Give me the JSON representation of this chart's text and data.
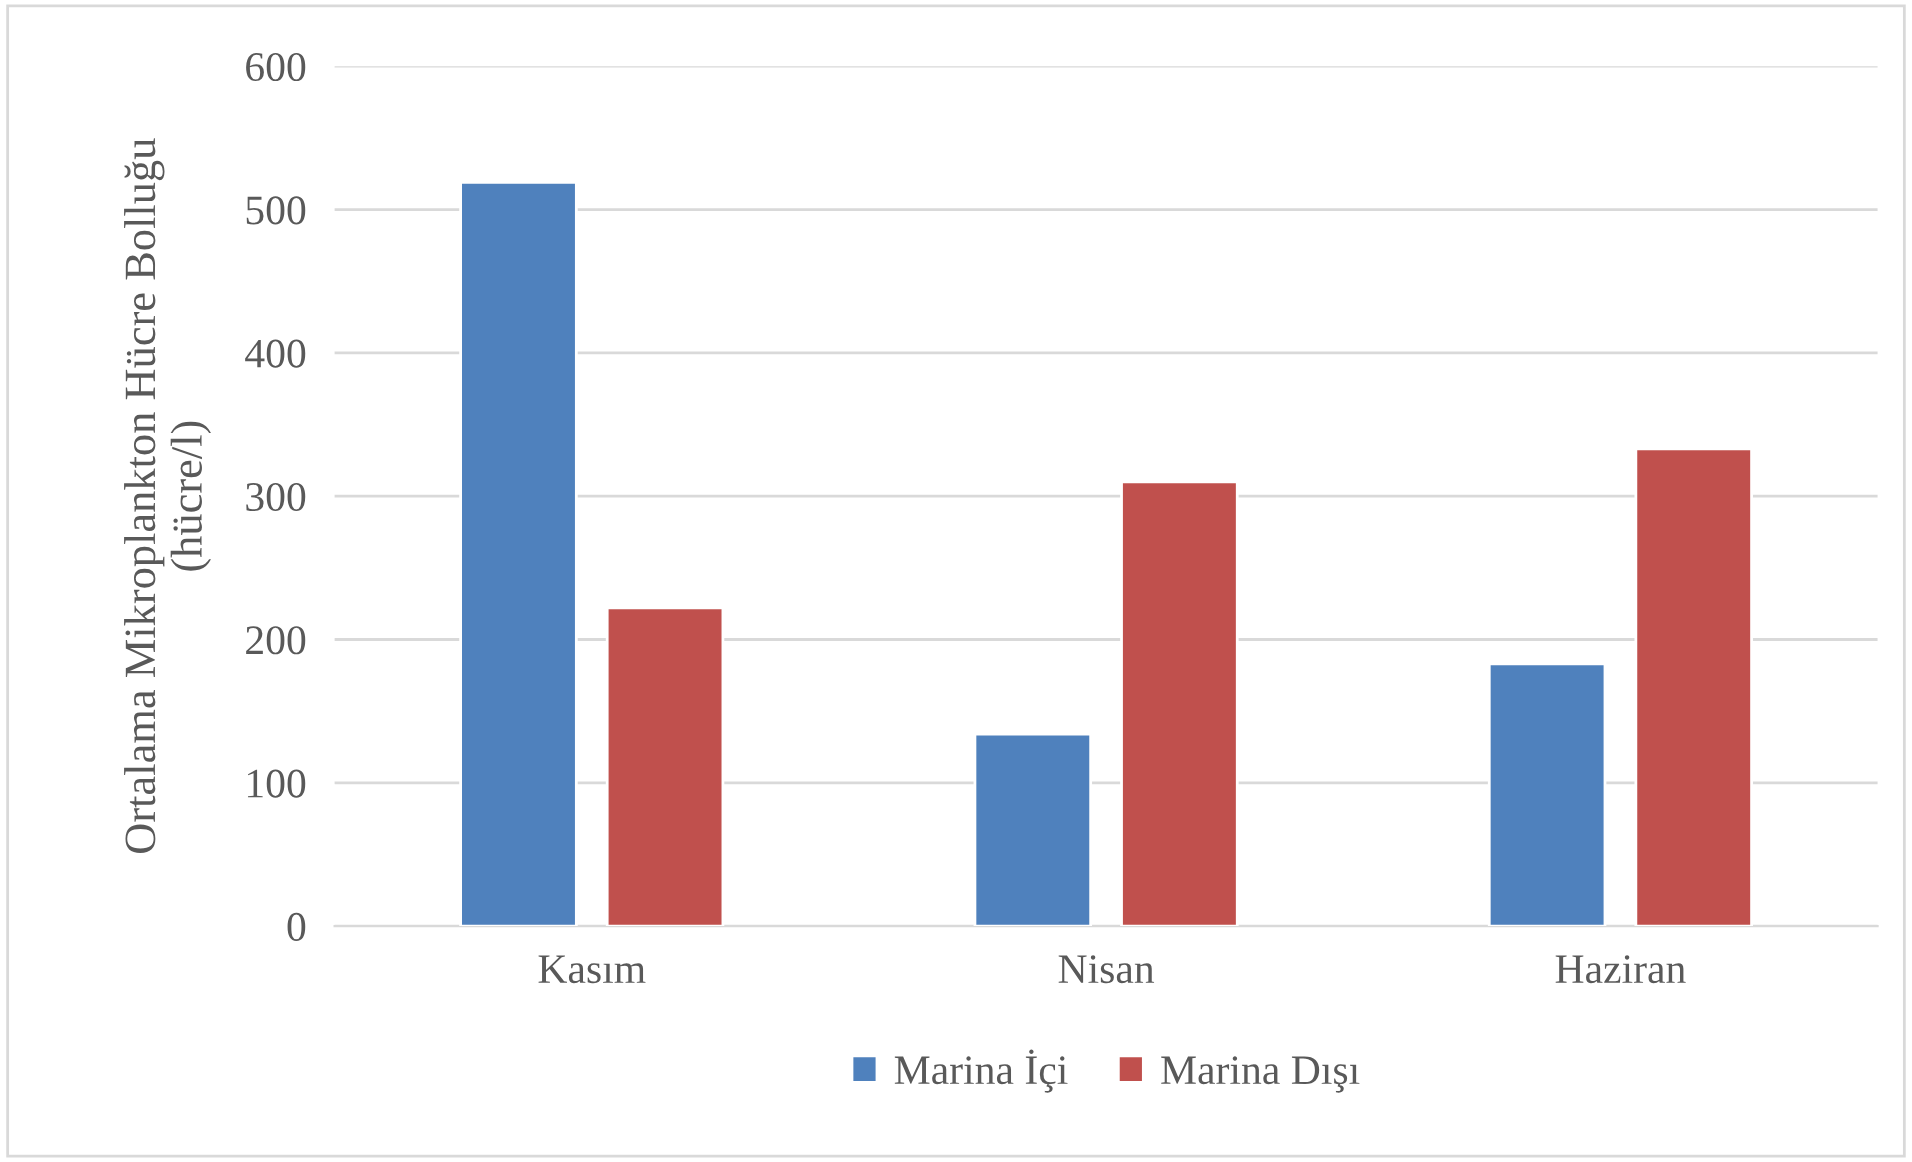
{
  "chart_data": {
    "type": "bar",
    "ylabel": "Ortalama Mikroplankton Hücre Bolluğu\n(hücre/l)",
    "categories": [
      "Kasım",
      "Nisan",
      "Haziran"
    ],
    "series": [
      {
        "name": "Marina İçi",
        "color": "#4f81bd",
        "values": [
          519,
          134,
          183
        ]
      },
      {
        "name": "Marina Dışı",
        "color": "#c0504d",
        "values": [
          222,
          310,
          333
        ]
      }
    ],
    "ylim": [
      0,
      600
    ],
    "yticks": [
      0,
      100,
      200,
      300,
      400,
      500,
      600
    ],
    "grid": "y",
    "legend": "bottom"
  }
}
